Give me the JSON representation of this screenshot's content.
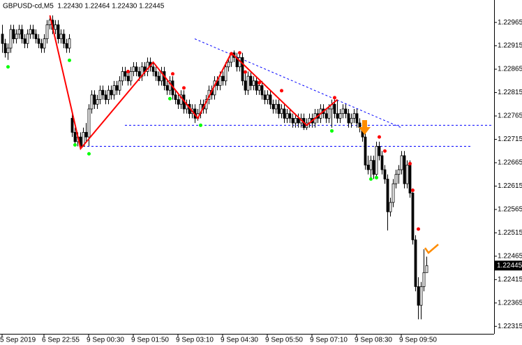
{
  "chart_data": {
    "type": "candlestick",
    "title": "GBPUSD-cd,M5  1.22430 1.22464 1.22430 1.22445",
    "xlim": [
      -0.75,
      176.25
    ],
    "ylim": [
      1.22299,
      1.23013
    ],
    "yticks": [
      1.22965,
      1.22915,
      1.22865,
      1.22815,
      1.22765,
      1.22715,
      1.22665,
      1.22615,
      1.22565,
      1.22515,
      1.22465,
      1.22415,
      1.22365,
      1.22315
    ],
    "xticks": [
      {
        "value": 0,
        "label": "5 Sep 2019"
      },
      {
        "value": 15,
        "label": "6 Sep 22:55"
      },
      {
        "value": 31,
        "label": "9 Sep 00:30"
      },
      {
        "value": 47,
        "label": "9 Sep 01:50"
      },
      {
        "value": 63,
        "label": "9 Sep 03:10"
      },
      {
        "value": 79,
        "label": "9 Sep 04:30"
      },
      {
        "value": 95,
        "label": "9 Sep 05:50"
      },
      {
        "value": 111,
        "label": "9 Sep 07:10"
      },
      {
        "value": 127,
        "label": "9 Sep 08:30"
      },
      {
        "value": 143,
        "label": "9 Sep 09:50"
      }
    ],
    "last_price": 1.22445,
    "colors": {
      "up": "#ffffff",
      "down": "#000000",
      "outline": "#000000"
    },
    "ohlc": [
      [
        1.2294,
        1.2296,
        1.229,
        1.2292
      ],
      [
        1.2292,
        1.2293,
        1.2289,
        1.229
      ],
      [
        1.229,
        1.2292,
        1.22885,
        1.2291
      ],
      [
        1.2291,
        1.2296,
        1.229,
        1.2295
      ],
      [
        1.2295,
        1.2296,
        1.2292,
        1.2293
      ],
      [
        1.2293,
        1.2295,
        1.2292,
        1.2294
      ],
      [
        1.2294,
        1.2296,
        1.2293,
        1.2295
      ],
      [
        1.2295,
        1.2296,
        1.2292,
        1.2293
      ],
      [
        1.2293,
        1.2294,
        1.2291,
        1.2292
      ],
      [
        1.2292,
        1.2295,
        1.2291,
        1.2294
      ],
      [
        1.2294,
        1.2296,
        1.2293,
        1.2295
      ],
      [
        1.2295,
        1.2296,
        1.2293,
        1.2294
      ],
      [
        1.2294,
        1.2295,
        1.2292,
        1.2293
      ],
      [
        1.2293,
        1.2294,
        1.2291,
        1.2292
      ],
      [
        1.2292,
        1.2293,
        1.229,
        1.2291
      ],
      [
        1.2291,
        1.2294,
        1.229,
        1.2293
      ],
      [
        1.2293,
        1.2297,
        1.2292,
        1.2296
      ],
      [
        1.2296,
        1.2298,
        1.2295,
        1.2297
      ],
      [
        1.2297,
        1.2298,
        1.2294,
        1.2295
      ],
      [
        1.2295,
        1.2297,
        1.2294,
        1.2296
      ],
      [
        1.2296,
        1.2297,
        1.2292,
        1.2293
      ],
      [
        1.2293,
        1.2295,
        1.2292,
        1.2294
      ],
      [
        1.2294,
        1.2295,
        1.2291,
        1.2292
      ],
      [
        1.2292,
        1.2293,
        1.229,
        1.2291
      ],
      [
        1.2291,
        1.2294,
        1.229,
        1.2293
      ],
      [
        1.2276,
        1.2277,
        1.2272,
        1.2273
      ],
      [
        1.2273,
        1.2274,
        1.227,
        1.2271
      ],
      [
        1.2271,
        1.2273,
        1.227,
        1.2272
      ],
      [
        1.2272,
        1.2273,
        1.22695,
        1.227
      ],
      [
        1.227,
        1.2274,
        1.227,
        1.2273
      ],
      [
        1.2273,
        1.2275,
        1.2271,
        1.2272
      ],
      [
        1.2272,
        1.2279,
        1.227,
        1.2278
      ],
      [
        1.2278,
        1.2282,
        1.2277,
        1.2281
      ],
      [
        1.2281,
        1.2282,
        1.2278,
        1.2279
      ],
      [
        1.2279,
        1.2281,
        1.2278,
        1.228
      ],
      [
        1.228,
        1.2283,
        1.2279,
        1.2282
      ],
      [
        1.2282,
        1.2283,
        1.228,
        1.2281
      ],
      [
        1.2281,
        1.2282,
        1.2279,
        1.228
      ],
      [
        1.228,
        1.2283,
        1.2279,
        1.2282
      ],
      [
        1.2282,
        1.2283,
        1.228,
        1.2281
      ],
      [
        1.2281,
        1.2284,
        1.228,
        1.2283
      ],
      [
        1.2283,
        1.2284,
        1.2281,
        1.2282
      ],
      [
        1.2282,
        1.2285,
        1.2281,
        1.2284
      ],
      [
        1.2284,
        1.2287,
        1.2283,
        1.2286
      ],
      [
        1.2286,
        1.2287,
        1.2284,
        1.2285
      ],
      [
        1.2285,
        1.2286,
        1.2283,
        1.2284
      ],
      [
        1.2284,
        1.2287,
        1.2283,
        1.2286
      ],
      [
        1.2286,
        1.2288,
        1.2285,
        1.2287
      ],
      [
        1.2287,
        1.2288,
        1.2285,
        1.2286
      ],
      [
        1.2286,
        1.2287,
        1.2284,
        1.2285
      ],
      [
        1.2285,
        1.2288,
        1.2284,
        1.2287
      ],
      [
        1.2287,
        1.2288,
        1.2285,
        1.2286
      ],
      [
        1.2286,
        1.2289,
        1.2285,
        1.2288
      ],
      [
        1.2288,
        1.2289,
        1.2286,
        1.2287
      ],
      [
        1.2287,
        1.2288,
        1.2285,
        1.2286
      ],
      [
        1.2286,
        1.2287,
        1.2284,
        1.2285
      ],
      [
        1.2285,
        1.2286,
        1.2283,
        1.2284
      ],
      [
        1.2284,
        1.2287,
        1.2283,
        1.2286
      ],
      [
        1.2286,
        1.2287,
        1.2282,
        1.2283
      ],
      [
        1.2283,
        1.2284,
        1.2281,
        1.2282
      ],
      [
        1.2282,
        1.2285,
        1.2281,
        1.2284
      ],
      [
        1.2284,
        1.2285,
        1.228,
        1.2281
      ],
      [
        1.2281,
        1.2282,
        1.2279,
        1.228
      ],
      [
        1.228,
        1.2281,
        1.2278,
        1.2279
      ],
      [
        1.2279,
        1.2282,
        1.2278,
        1.2281
      ],
      [
        1.2281,
        1.2282,
        1.2277,
        1.2278
      ],
      [
        1.2278,
        1.228,
        1.2277,
        1.2279
      ],
      [
        1.2279,
        1.228,
        1.2276,
        1.2277
      ],
      [
        1.2277,
        1.2279,
        1.2276,
        1.2278
      ],
      [
        1.2278,
        1.2279,
        1.2275,
        1.2276
      ],
      [
        1.2276,
        1.2278,
        1.22755,
        1.2277
      ],
      [
        1.2277,
        1.228,
        1.2276,
        1.2279
      ],
      [
        1.2279,
        1.228,
        1.2277,
        1.2278
      ],
      [
        1.2278,
        1.2281,
        1.2277,
        1.228
      ],
      [
        1.228,
        1.2283,
        1.2279,
        1.2282
      ],
      [
        1.2282,
        1.2283,
        1.228,
        1.2281
      ],
      [
        1.2281,
        1.2285,
        1.228,
        1.2284
      ],
      [
        1.2284,
        1.2285,
        1.2282,
        1.2283
      ],
      [
        1.2283,
        1.2286,
        1.2282,
        1.2285
      ],
      [
        1.2285,
        1.2286,
        1.2283,
        1.2284
      ],
      [
        1.2284,
        1.2288,
        1.2283,
        1.2287
      ],
      [
        1.2287,
        1.2289,
        1.2286,
        1.2288
      ],
      [
        1.2288,
        1.229,
        1.2287,
        1.229
      ],
      [
        1.229,
        1.22905,
        1.2288,
        1.2289
      ],
      [
        1.2289,
        1.229,
        1.2286,
        1.2287
      ],
      [
        1.2287,
        1.229,
        1.2286,
        1.2289
      ],
      [
        1.2289,
        1.229,
        1.2283,
        1.2284
      ],
      [
        1.2284,
        1.2286,
        1.2281,
        1.2282
      ],
      [
        1.2282,
        1.2286,
        1.2281,
        1.2285
      ],
      [
        1.2285,
        1.2286,
        1.2282,
        1.2283
      ],
      [
        1.2283,
        1.2285,
        1.2282,
        1.2284
      ],
      [
        1.2284,
        1.2285,
        1.2281,
        1.2282
      ],
      [
        1.2282,
        1.2284,
        1.2281,
        1.2283
      ],
      [
        1.2283,
        1.2284,
        1.228,
        1.2281
      ],
      [
        1.2281,
        1.2282,
        1.2279,
        1.228
      ],
      [
        1.228,
        1.2282,
        1.2279,
        1.2281
      ],
      [
        1.2281,
        1.2282,
        1.2278,
        1.2279
      ],
      [
        1.2279,
        1.228,
        1.2277,
        1.2278
      ],
      [
        1.2278,
        1.228,
        1.2277,
        1.2279
      ],
      [
        1.2279,
        1.228,
        1.2276,
        1.2277
      ],
      [
        1.2277,
        1.2279,
        1.2276,
        1.2278
      ],
      [
        1.2278,
        1.2279,
        1.2275,
        1.2276
      ],
      [
        1.2276,
        1.2278,
        1.2275,
        1.2277
      ],
      [
        1.2277,
        1.2278,
        1.2275,
        1.2276
      ],
      [
        1.2276,
        1.2277,
        1.2274,
        1.2275
      ],
      [
        1.2275,
        1.2277,
        1.2274,
        1.2276
      ],
      [
        1.2276,
        1.2277,
        1.2274,
        1.2275
      ],
      [
        1.2275,
        1.2277,
        1.2274,
        1.2276
      ],
      [
        1.2276,
        1.2277,
        1.22735,
        1.2274
      ],
      [
        1.2274,
        1.2276,
        1.22735,
        1.2275
      ],
      [
        1.2275,
        1.2277,
        1.2274,
        1.2276
      ],
      [
        1.2276,
        1.2277,
        1.2274,
        1.2275
      ],
      [
        1.2275,
        1.2278,
        1.2274,
        1.2277
      ],
      [
        1.2277,
        1.2278,
        1.2275,
        1.2276
      ],
      [
        1.2276,
        1.2279,
        1.2275,
        1.2278
      ],
      [
        1.2278,
        1.2279,
        1.2276,
        1.2277
      ],
      [
        1.2277,
        1.2278,
        1.2275,
        1.2276
      ],
      [
        1.2276,
        1.2279,
        1.2275,
        1.2278
      ],
      [
        1.2278,
        1.228,
        1.2274,
        1.2279
      ],
      [
        1.2279,
        1.228,
        1.2276,
        1.2277
      ],
      [
        1.2277,
        1.228,
        1.2275,
        1.2276
      ],
      [
        1.2276,
        1.2278,
        1.2275,
        1.2277
      ],
      [
        1.2277,
        1.2279,
        1.2276,
        1.2278
      ],
      [
        1.2278,
        1.2279,
        1.2276,
        1.2277
      ],
      [
        1.2277,
        1.2278,
        1.2274,
        1.2275
      ],
      [
        1.2275,
        1.2277,
        1.2274,
        1.2276
      ],
      [
        1.2276,
        1.2278,
        1.2275,
        1.2277
      ],
      [
        1.2277,
        1.2278,
        1.2274,
        1.2275
      ],
      [
        1.2275,
        1.2276,
        1.2273,
        1.2274
      ],
      [
        1.2274,
        1.2275,
        1.2271,
        1.2272
      ],
      [
        1.2272,
        1.2273,
        1.2265,
        1.2266
      ],
      [
        1.2266,
        1.2268,
        1.2264,
        1.2265
      ],
      [
        1.2265,
        1.2268,
        1.2263,
        1.2267
      ],
      [
        1.2267,
        1.2268,
        1.2263,
        1.2264
      ],
      [
        1.2264,
        1.2271,
        1.2263,
        1.227
      ],
      [
        1.227,
        1.2271,
        1.2267,
        1.2268
      ],
      [
        1.2268,
        1.2269,
        1.2264,
        1.2265
      ],
      [
        1.2265,
        1.2266,
        1.2262,
        1.2263
      ],
      [
        1.2263,
        1.2264,
        1.2252,
        1.2256
      ],
      [
        1.2256,
        1.2259,
        1.2255,
        1.2258
      ],
      [
        1.2258,
        1.2263,
        1.2257,
        1.2262
      ],
      [
        1.2262,
        1.2265,
        1.2261,
        1.2264
      ],
      [
        1.2264,
        1.2266,
        1.2262,
        1.2265
      ],
      [
        1.2265,
        1.2269,
        1.2264,
        1.2268
      ],
      [
        1.2268,
        1.2269,
        1.2261,
        1.2262
      ],
      [
        1.2262,
        1.2267,
        1.2261,
        1.2266
      ],
      [
        1.2266,
        1.2267,
        1.2259,
        1.226
      ],
      [
        1.226,
        1.2261,
        1.2249,
        1.225
      ],
      [
        1.225,
        1.2251,
        1.2239,
        1.224
      ],
      [
        1.224,
        1.2242,
        1.2233,
        1.2236
      ],
      [
        1.2236,
        1.2241,
        1.2233,
        1.224
      ],
      [
        1.224,
        1.2248,
        1.2239,
        1.2243
      ],
      [
        1.2243,
        1.22464,
        1.2243,
        1.22445
      ]
    ],
    "zigzag": {
      "color": "#ff0000",
      "x": [
        17,
        28,
        54,
        70,
        82,
        109,
        120
      ],
      "y": [
        1.2298,
        1.22695,
        1.2288,
        1.2276,
        1.229,
        1.22745,
        1.228
      ]
    },
    "fractals": [
      {
        "color": "#ff0000",
        "x": [
          45,
          61,
          65,
          82,
          85,
          87,
          92,
          100,
          119,
          135,
          137,
          146,
          147,
          149
        ],
        "y": [
          1.2286,
          1.22855,
          1.22825,
          1.22898,
          1.229,
          1.22859,
          1.22836,
          1.22819,
          1.22804,
          1.2272,
          1.2269,
          1.22663,
          1.22606,
          1.22523
        ]
      },
      {
        "color": "#00ff00",
        "x": [
          2,
          24,
          26,
          31,
          60,
          71,
          118,
          132,
          134
        ],
        "y": [
          1.2287,
          1.22884,
          1.22703,
          1.22684,
          1.22802,
          1.22745,
          1.22733,
          1.2263,
          1.22633
        ]
      }
    ],
    "line_color": "#0000ff",
    "hlines": [
      {
        "y": 1.22745,
        "x": [
          44,
          176
        ]
      },
      {
        "y": 1.227,
        "x": [
          29,
          168
        ]
      }
    ],
    "trendline": {
      "x": [
        69,
        143
      ],
      "y": [
        1.2293,
        1.2274
      ]
    }
  }
}
